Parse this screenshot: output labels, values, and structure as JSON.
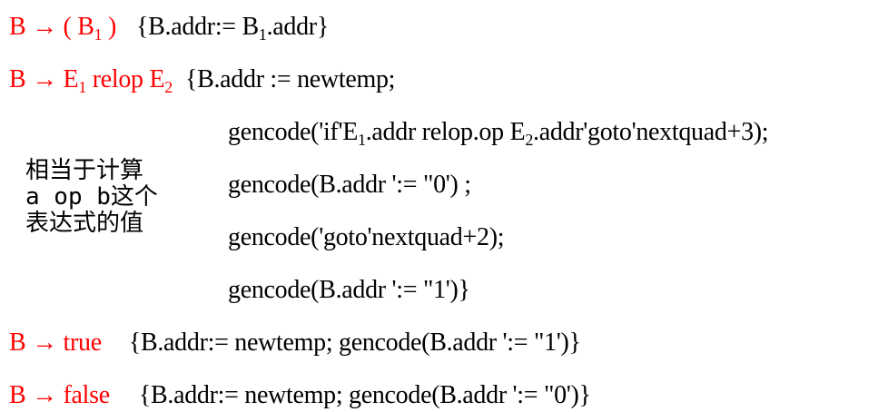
{
  "rules": {
    "paren": {
      "lhs": "B",
      "arrow": "→",
      "rhs_open": "( B",
      "rhs_sub": "1",
      "rhs_close": " )",
      "action_pre": "{B.addr:= B",
      "action_sub": "1",
      "action_post": ".addr}"
    },
    "relop": {
      "lhs": "B",
      "arrow": "→",
      "rhs_e1": "E",
      "rhs_e1_sub": "1",
      "rhs_relop": " relop E",
      "rhs_e2_sub": "2",
      "action_first": "{B.addr := newtemp;",
      "gen1_pre": "gencode('if'E",
      "gen1_sub1": "1",
      "gen1_mid": ".addr relop.op E",
      "gen1_sub2": "2",
      "gen1_post": ".addr'goto'nextquad+3);",
      "gen2": "gencode(B.addr ':= \"0') ;",
      "gen3": "gencode('goto'nextquad+2);",
      "gen4": "gencode(B.addr ':= \"1')}"
    },
    "true_rule": {
      "lhs": "B",
      "arrow": "→",
      "rhs": "true",
      "action": "{B.addr:= newtemp; gencode(B.addr ':= \"1')}"
    },
    "false_rule": {
      "lhs": "B",
      "arrow": "→",
      "rhs": "false",
      "action": "{B.addr:= newtemp; gencode(B.addr ':= \"0')}"
    }
  },
  "note": {
    "line1": "相当于计算",
    "line2": "a op b这个",
    "line3": "表达式的值"
  },
  "colors": {
    "production": "#ff0000",
    "text": "#000000"
  }
}
